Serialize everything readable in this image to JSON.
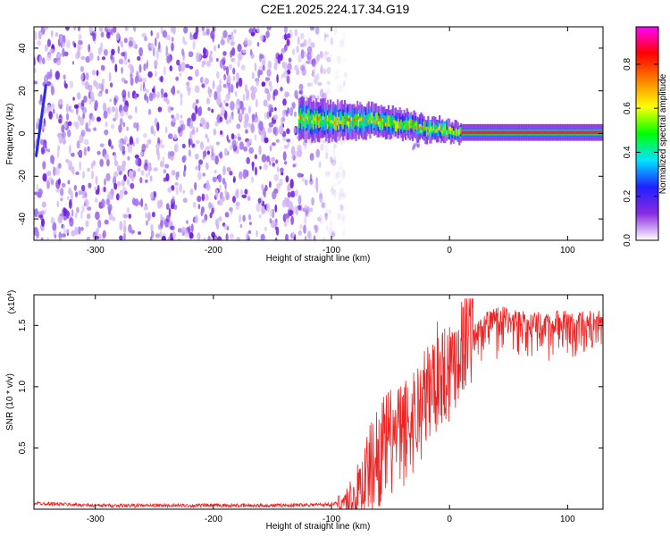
{
  "title": "C2E1.2025.224.17.34.G19",
  "colors": {
    "background": "#ffffff",
    "axis": "#000000",
    "snr_line": "#ee2222",
    "scatter_purple": "#7a1fe0",
    "scatter_light": "#c9a6f2"
  },
  "chart_data": [
    {
      "type": "heatmap",
      "xlabel": "Height of straight line (km)",
      "ylabel": "Frequency (Hz)",
      "xlim": [
        -352,
        130
      ],
      "ylim": [
        -50,
        50
      ],
      "x_ticks": [
        -300,
        -200,
        -100,
        0,
        100
      ],
      "x_tick_labels": [
        "-300",
        "-200",
        "-100",
        "0",
        "100"
      ],
      "y_ticks": [
        -40,
        -20,
        0,
        20,
        40
      ],
      "y_tick_labels": [
        "-40",
        "-20",
        "0",
        "20",
        "40"
      ],
      "noise_region": {
        "x_range": [
          -352,
          -100
        ],
        "y_range": [
          -50,
          50
        ],
        "amplitude": 0.1
      },
      "signal_ridge": [
        {
          "x": -128,
          "y": 7
        },
        {
          "x": -110,
          "y": 6
        },
        {
          "x": -95,
          "y": 6
        },
        {
          "x": -80,
          "y": 6
        },
        {
          "x": -65,
          "y": 6
        },
        {
          "x": -50,
          "y": 5
        },
        {
          "x": -35,
          "y": 4
        },
        {
          "x": -20,
          "y": 2
        },
        {
          "x": -10,
          "y": 2
        },
        {
          "x": 0,
          "y": 1
        },
        {
          "x": 10,
          "y": 0.5
        },
        {
          "x": 130,
          "y": 0.5
        }
      ],
      "colorbar": {
        "label": "Normalized spectral amplitude",
        "ticks": [
          0.0,
          0.2,
          0.4,
          0.6,
          0.8
        ],
        "tick_labels": [
          "0.0",
          "0.2",
          "0.4",
          "0.6",
          "0.8"
        ],
        "range": [
          0,
          0.97
        ],
        "colormap": [
          "#ffffff",
          "#8a2be2",
          "#2020ff",
          "#00e5ff",
          "#00ff00",
          "#ffff00",
          "#ff8000",
          "#ff0000",
          "#ff00ff"
        ]
      }
    },
    {
      "type": "line",
      "xlabel": "Height of straight line (km)",
      "ylabel": "SNR (10 * v/v)",
      "scale_label": "(x10",
      "scale_exponent": "4",
      "scale_close": ")",
      "xlim": [
        -352,
        130
      ],
      "ylim": [
        0.0,
        1.75
      ],
      "x_ticks": [
        -300,
        -200,
        -100,
        0,
        100
      ],
      "x_tick_labels": [
        "-300",
        "-200",
        "-100",
        "0",
        "100"
      ],
      "y_ticks": [
        0.5,
        1.0,
        1.5
      ],
      "y_tick_labels": [
        "0.5",
        "1.0",
        "1.5"
      ],
      "series": [
        {
          "color": "#ee2222",
          "x": [
            -352,
            -300,
            -250,
            -200,
            -150,
            -100,
            -80,
            -70,
            -60,
            -50,
            -40,
            -30,
            -20,
            -10,
            0,
            10,
            20,
            30,
            40,
            50,
            60,
            70,
            80,
            90,
            100,
            110,
            120,
            130
          ],
          "y": [
            0.05,
            0.03,
            0.03,
            0.03,
            0.03,
            0.04,
            0.08,
            0.3,
            0.45,
            0.55,
            0.6,
            0.75,
            0.9,
            1.1,
            1.15,
            1.35,
            1.5,
            1.6,
            1.64,
            1.64,
            1.62,
            1.6,
            1.58,
            1.6,
            1.6,
            1.6,
            1.6,
            1.6
          ]
        }
      ]
    }
  ]
}
